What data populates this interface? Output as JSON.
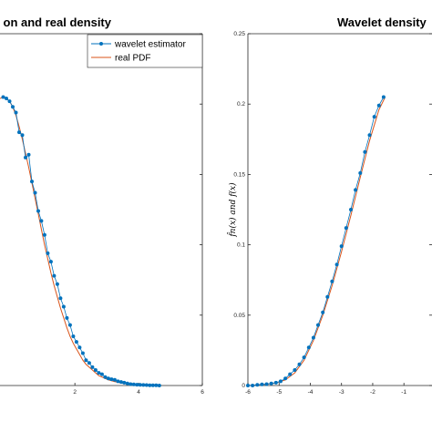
{
  "chart_data": [
    {
      "type": "line",
      "title": "on and real density",
      "xlabel": "",
      "ylabel": "",
      "xlim": [
        -0.35,
        6
      ],
      "ylim": [
        0,
        0.25
      ],
      "xticks": [
        "2",
        "4",
        "6"
      ],
      "grid": false,
      "legend": {
        "placement": "top-right",
        "entries": [
          "wavelet estimator",
          "real PDF"
        ]
      },
      "colors": {
        "estimator": "#0072BD",
        "pdf": "#D95319"
      },
      "series": [
        {
          "name": "wavelet estimator",
          "marker": "dot",
          "x": [
            -0.25,
            -0.15,
            -0.05,
            0.05,
            0.15,
            0.25,
            0.35,
            0.45,
            0.55,
            0.65,
            0.75,
            0.85,
            0.95,
            1.05,
            1.15,
            1.25,
            1.35,
            1.45,
            1.55,
            1.65,
            1.75,
            1.85,
            1.95,
            2.05,
            2.15,
            2.25,
            2.35,
            2.45,
            2.55,
            2.65,
            2.75,
            2.85,
            2.95,
            3.05,
            3.15,
            3.25,
            3.35,
            3.45,
            3.55,
            3.65,
            3.75,
            3.85,
            3.95,
            4.05,
            4.15,
            4.25,
            4.35,
            4.45,
            4.55,
            4.65
          ],
          "y": [
            0.205,
            0.204,
            0.202,
            0.198,
            0.194,
            0.18,
            0.178,
            0.162,
            0.164,
            0.145,
            0.137,
            0.124,
            0.117,
            0.107,
            0.094,
            0.088,
            0.078,
            0.072,
            0.062,
            0.056,
            0.048,
            0.043,
            0.035,
            0.031,
            0.027,
            0.023,
            0.018,
            0.016,
            0.013,
            0.011,
            0.009,
            0.008,
            0.006,
            0.005,
            0.0045,
            0.004,
            0.003,
            0.0025,
            0.002,
            0.0015,
            0.001,
            0.0008,
            0.0006,
            0.0005,
            0.0004,
            0.0003,
            0.0002,
            0.0001,
            0.0001,
            0.0
          ]
        },
        {
          "name": "real PDF",
          "marker": "none",
          "x": [
            -0.35,
            -0.25,
            -0.15,
            -0.05,
            0.05,
            0.15,
            0.25,
            0.35,
            0.45,
            0.55,
            0.65,
            0.75,
            0.85,
            0.95,
            1.05,
            1.15,
            1.25,
            1.35,
            1.45,
            1.55,
            1.65,
            1.75,
            1.85,
            1.95,
            2.05,
            2.15,
            2.25,
            2.35,
            2.45,
            2.55,
            2.65,
            2.75,
            2.85,
            2.95,
            3.05,
            3.15,
            3.25,
            3.35,
            3.45,
            3.55,
            3.65,
            3.75,
            3.85,
            3.95,
            4.05,
            4.15,
            4.25,
            4.35,
            4.45,
            4.55,
            4.65
          ],
          "y": [
            0.204,
            0.205,
            0.204,
            0.202,
            0.198,
            0.192,
            0.184,
            0.175,
            0.165,
            0.155,
            0.144,
            0.133,
            0.122,
            0.111,
            0.1,
            0.09,
            0.08,
            0.071,
            0.063,
            0.055,
            0.048,
            0.041,
            0.035,
            0.03,
            0.026,
            0.022,
            0.018,
            0.015,
            0.013,
            0.011,
            0.009,
            0.007,
            0.006,
            0.005,
            0.004,
            0.0034,
            0.0028,
            0.0023,
            0.0018,
            0.0014,
            0.0011,
            0.0008,
            0.0006,
            0.0005,
            0.0004,
            0.0003,
            0.0002,
            0.0001,
            0.0001,
            0.0,
            0.0
          ]
        }
      ]
    },
    {
      "type": "line",
      "title": "Wavelet density",
      "xlabel": "",
      "ylabel": "f̂n(x) and f(x)",
      "xlim": [
        -6,
        -0.1
      ],
      "ylim": [
        0,
        0.25
      ],
      "xticks": [
        "-6",
        "-5",
        "-4",
        "-3",
        "-2",
        "-1"
      ],
      "yticks": [
        "0",
        "0.05",
        "0.1",
        "0.15",
        "0.2",
        "0.25"
      ],
      "grid": false,
      "colors": {
        "estimator": "#0072BD",
        "pdf": "#D95319"
      },
      "series": [
        {
          "name": "wavelet estimator",
          "marker": "dot",
          "x": [
            -6.0,
            -5.85,
            -5.7,
            -5.55,
            -5.4,
            -5.25,
            -5.1,
            -4.95,
            -4.8,
            -4.65,
            -4.5,
            -4.35,
            -4.2,
            -4.05,
            -3.9,
            -3.75,
            -3.6,
            -3.45,
            -3.3,
            -3.15,
            -3.0,
            -2.85,
            -2.7,
            -2.55,
            -2.4,
            -2.25,
            -2.1,
            -1.95,
            -1.8,
            -1.65
          ],
          "y": [
            0.0,
            0.0,
            0.0005,
            0.0008,
            0.001,
            0.0015,
            0.002,
            0.003,
            0.005,
            0.008,
            0.011,
            0.015,
            0.02,
            0.027,
            0.034,
            0.043,
            0.052,
            0.063,
            0.074,
            0.086,
            0.099,
            0.112,
            0.125,
            0.139,
            0.151,
            0.166,
            0.178,
            0.191,
            0.199,
            0.205
          ]
        },
        {
          "name": "real PDF",
          "marker": "none",
          "x": [
            -6.0,
            -5.7,
            -5.4,
            -5.1,
            -4.8,
            -4.5,
            -4.2,
            -3.9,
            -3.6,
            -3.3,
            -3.0,
            -2.7,
            -2.4,
            -2.1,
            -1.8,
            -1.6
          ],
          "y": [
            0.0,
            0.0004,
            0.0009,
            0.0018,
            0.004,
            0.009,
            0.018,
            0.032,
            0.05,
            0.071,
            0.095,
            0.121,
            0.148,
            0.174,
            0.196,
            0.205
          ]
        }
      ]
    }
  ]
}
